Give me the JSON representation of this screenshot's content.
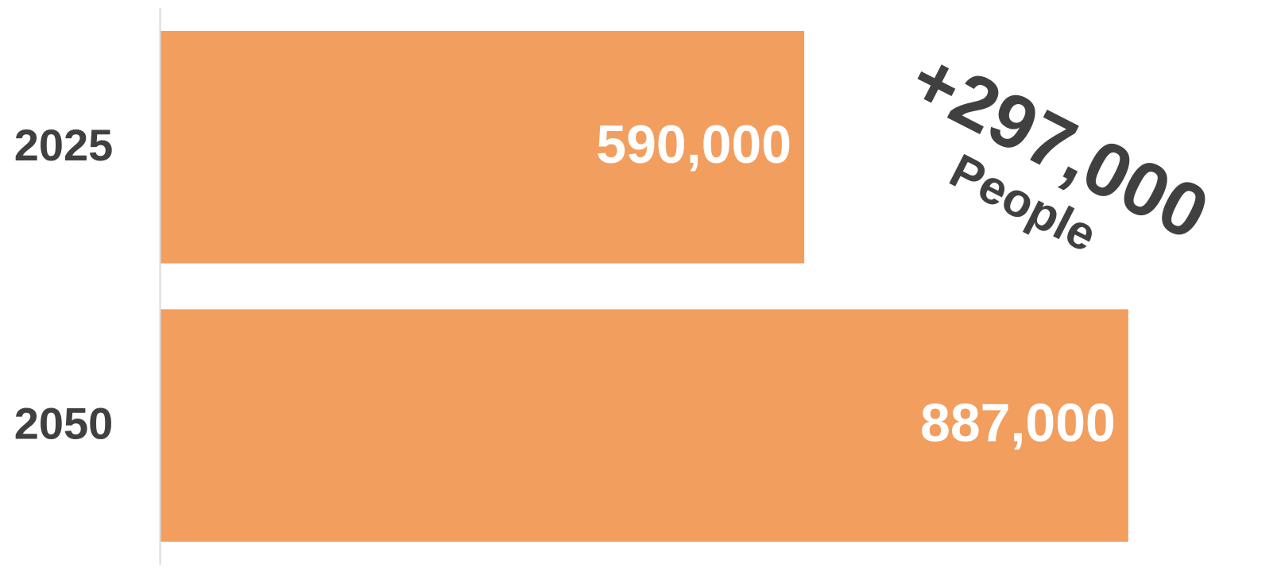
{
  "chart_data": {
    "type": "barh",
    "categories": [
      "2025",
      "2050"
    ],
    "values": [
      590000,
      887000
    ],
    "value_labels": [
      "590,000",
      "887,000"
    ],
    "color": "#f29e5e",
    "xlim": [
      0,
      1000000
    ],
    "annotations": [
      "+297,000",
      "People"
    ]
  }
}
